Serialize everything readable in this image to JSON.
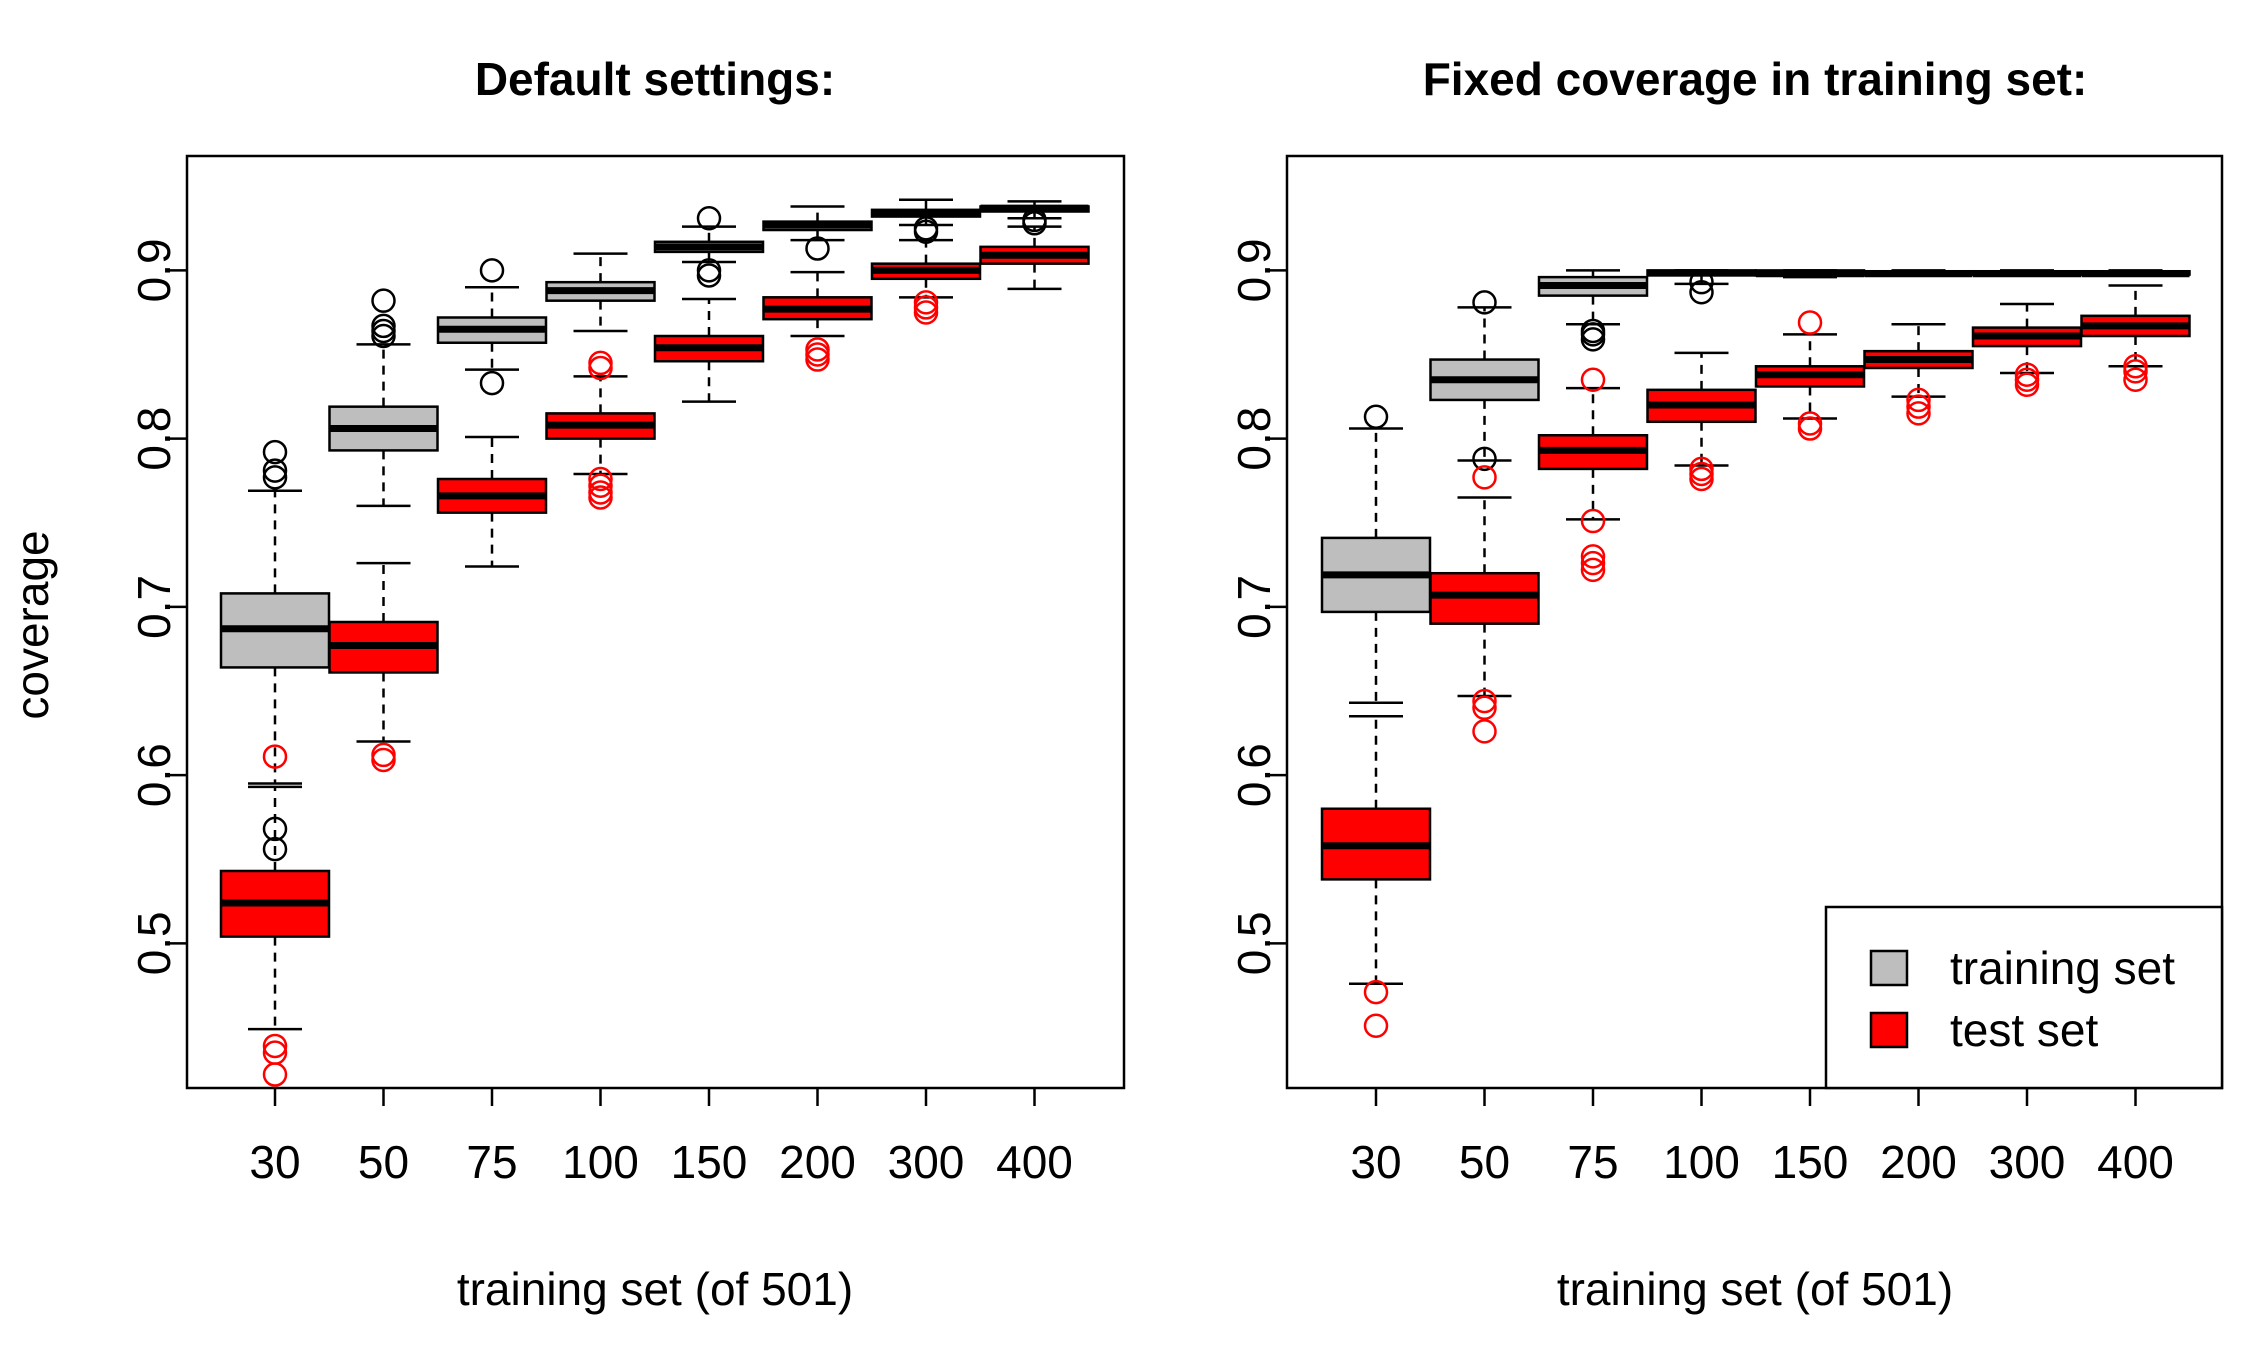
{
  "chart_data": [
    {
      "type": "boxplot",
      "title": "Default settings:",
      "xlabel": "training set (of 501)",
      "ylabel": "coverage",
      "categories": [
        "30",
        "50",
        "75",
        "100",
        "150",
        "200",
        "300",
        "400"
      ],
      "yticks": [
        "0.5",
        "0.6",
        "0.7",
        "0.8",
        "0.9"
      ],
      "ylim": [
        0.414,
        0.968
      ],
      "series": [
        {
          "name": "training set",
          "fill": "#bebebe",
          "outlier_color": "#000000",
          "boxes": [
            {
              "whisker_low": 0.595,
              "q1": 0.664,
              "median": 0.687,
              "q3": 0.708,
              "whisker_high": 0.769,
              "outliers": [
                0.556,
                0.568,
                0.777,
                0.781,
                0.792
              ]
            },
            {
              "whisker_low": 0.76,
              "q1": 0.793,
              "median": 0.806,
              "q3": 0.819,
              "whisker_high": 0.856,
              "outliers": [
                0.861,
                0.864,
                0.867,
                0.882
              ]
            },
            {
              "whisker_low": 0.841,
              "q1": 0.857,
              "median": 0.865,
              "q3": 0.872,
              "whisker_high": 0.89,
              "outliers": [
                0.833,
                0.9
              ]
            },
            {
              "whisker_low": 0.864,
              "q1": 0.882,
              "median": 0.888,
              "q3": 0.893,
              "whisker_high": 0.91,
              "outliers": []
            },
            {
              "whisker_low": 0.905,
              "q1": 0.911,
              "median": 0.914,
              "q3": 0.917,
              "whisker_high": 0.926,
              "outliers": [
                0.897,
                0.9,
                0.931
              ]
            },
            {
              "whisker_low": 0.918,
              "q1": 0.924,
              "median": 0.927,
              "q3": 0.929,
              "whisker_high": 0.938,
              "outliers": [
                0.913
              ]
            },
            {
              "whisker_low": 0.927,
              "q1": 0.932,
              "median": 0.934,
              "q3": 0.936,
              "whisker_high": 0.942,
              "outliers": [
                0.923,
                0.925
              ]
            },
            {
              "whisker_low": 0.931,
              "q1": 0.935,
              "median": 0.937,
              "q3": 0.938,
              "whisker_high": 0.941,
              "outliers": [
                0.928,
                0.93
              ]
            }
          ]
        },
        {
          "name": "test set",
          "fill": "#ff0000",
          "outlier_color": "#ff0000",
          "boxes": [
            {
              "whisker_low": 0.449,
              "q1": 0.504,
              "median": 0.524,
              "q3": 0.543,
              "whisker_high": 0.593,
              "outliers": [
                0.422,
                0.435,
                0.439,
                0.611
              ]
            },
            {
              "whisker_low": 0.62,
              "q1": 0.661,
              "median": 0.677,
              "q3": 0.691,
              "whisker_high": 0.726,
              "outliers": [
                0.609,
                0.612
              ]
            },
            {
              "whisker_low": 0.724,
              "q1": 0.756,
              "median": 0.766,
              "q3": 0.776,
              "whisker_high": 0.801,
              "outliers": []
            },
            {
              "whisker_low": 0.779,
              "q1": 0.8,
              "median": 0.808,
              "q3": 0.815,
              "whisker_high": 0.837,
              "outliers": [
                0.765,
                0.768,
                0.772,
                0.776,
                0.842,
                0.845
              ]
            },
            {
              "whisker_low": 0.822,
              "q1": 0.846,
              "median": 0.854,
              "q3": 0.861,
              "whisker_high": 0.883,
              "outliers": []
            },
            {
              "whisker_low": 0.861,
              "q1": 0.871,
              "median": 0.877,
              "q3": 0.884,
              "whisker_high": 0.899,
              "outliers": [
                0.847,
                0.85,
                0.853
              ]
            },
            {
              "whisker_low": 0.884,
              "q1": 0.895,
              "median": 0.9,
              "q3": 0.904,
              "whisker_high": 0.918,
              "outliers": [
                0.875,
                0.878,
                0.881
              ]
            },
            {
              "whisker_low": 0.889,
              "q1": 0.904,
              "median": 0.909,
              "q3": 0.914,
              "whisker_high": 0.926,
              "outliers": []
            }
          ]
        }
      ]
    },
    {
      "type": "boxplot",
      "title": "Fixed coverage in training set:",
      "xlabel": "training set (of 501)",
      "ylabel": "",
      "categories": [
        "30",
        "50",
        "75",
        "100",
        "150",
        "200",
        "300",
        "400"
      ],
      "yticks": [
        "0.5",
        "0.6",
        "0.7",
        "0.8",
        "0.9"
      ],
      "ylim": [
        0.414,
        0.968
      ],
      "series": [
        {
          "name": "training set",
          "fill": "#bebebe",
          "outlier_color": "#000000",
          "boxes": [
            {
              "whisker_low": 0.643,
              "q1": 0.697,
              "median": 0.719,
              "q3": 0.741,
              "whisker_high": 0.806,
              "outliers": [
                0.813
              ]
            },
            {
              "whisker_low": 0.787,
              "q1": 0.823,
              "median": 0.835,
              "q3": 0.847,
              "whisker_high": 0.878,
              "outliers": [
                0.788,
                0.881
              ]
            },
            {
              "whisker_low": 0.868,
              "q1": 0.885,
              "median": 0.891,
              "q3": 0.896,
              "whisker_high": 0.9,
              "outliers": [
                0.859,
                0.862,
                0.864
              ]
            },
            {
              "whisker_low": 0.892,
              "q1": 0.897,
              "median": 0.8985,
              "q3": 0.9,
              "whisker_high": 0.9,
              "outliers": [
                0.887,
                0.893
              ]
            },
            {
              "whisker_low": 0.896,
              "q1": 0.897,
              "median": 0.898,
              "q3": 0.9,
              "whisker_high": 0.9,
              "outliers": []
            },
            {
              "whisker_low": 0.897,
              "q1": 0.8975,
              "median": 0.898,
              "q3": 0.8995,
              "whisker_high": 0.9,
              "outliers": []
            },
            {
              "whisker_low": 0.897,
              "q1": 0.8975,
              "median": 0.898,
              "q3": 0.8995,
              "whisker_high": 0.9,
              "outliers": []
            },
            {
              "whisker_low": 0.897,
              "q1": 0.8975,
              "median": 0.898,
              "q3": 0.8995,
              "whisker_high": 0.9,
              "outliers": []
            }
          ]
        },
        {
          "name": "test set",
          "fill": "#ff0000",
          "outlier_color": "#ff0000",
          "boxes": [
            {
              "whisker_low": 0.476,
              "q1": 0.538,
              "median": 0.558,
              "q3": 0.58,
              "whisker_high": 0.635,
              "outliers": [
                0.451,
                0.471
              ]
            },
            {
              "whisker_low": 0.647,
              "q1": 0.69,
              "median": 0.707,
              "q3": 0.72,
              "whisker_high": 0.765,
              "outliers": [
                0.626,
                0.64,
                0.644,
                0.777
              ]
            },
            {
              "whisker_low": 0.752,
              "q1": 0.782,
              "median": 0.793,
              "q3": 0.802,
              "whisker_high": 0.83,
              "outliers": [
                0.722,
                0.726,
                0.73,
                0.751,
                0.835
              ]
            },
            {
              "whisker_low": 0.784,
              "q1": 0.81,
              "median": 0.82,
              "q3": 0.829,
              "whisker_high": 0.851,
              "outliers": [
                0.776,
                0.779,
                0.782
              ]
            },
            {
              "whisker_low": 0.812,
              "q1": 0.831,
              "median": 0.838,
              "q3": 0.843,
              "whisker_high": 0.862,
              "outliers": [
                0.806,
                0.809,
                0.869
              ]
            },
            {
              "whisker_low": 0.825,
              "q1": 0.842,
              "median": 0.847,
              "q3": 0.852,
              "whisker_high": 0.868,
              "outliers": [
                0.815,
                0.819,
                0.823
              ]
            },
            {
              "whisker_low": 0.839,
              "q1": 0.855,
              "median": 0.861,
              "q3": 0.866,
              "whisker_high": 0.88,
              "outliers": [
                0.832,
                0.835,
                0.838
              ]
            },
            {
              "whisker_low": 0.843,
              "q1": 0.861,
              "median": 0.867,
              "q3": 0.873,
              "whisker_high": 0.891,
              "outliers": [
                0.835,
                0.84,
                0.843
              ]
            }
          ]
        }
      ],
      "legend": {
        "position": "bottom-right",
        "entries": [
          {
            "label": "training set",
            "fill": "#bebebe"
          },
          {
            "label": "test set",
            "fill": "#ff0000"
          }
        ]
      }
    }
  ]
}
